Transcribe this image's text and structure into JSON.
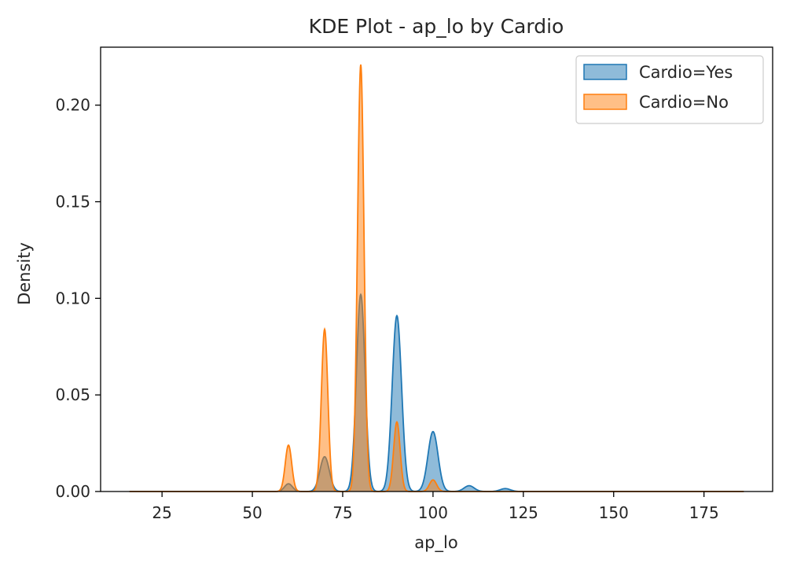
{
  "chart_data": {
    "type": "area",
    "title": "KDE Plot - ap_lo by Cardio",
    "xlabel": "ap_lo",
    "ylabel": "Density",
    "xlim": [
      8,
      194
    ],
    "ylim": [
      0,
      0.23
    ],
    "xticks": [
      25,
      50,
      75,
      100,
      125,
      150,
      175
    ],
    "yticks": [
      0.0,
      0.05,
      0.1,
      0.15,
      0.2
    ],
    "ytick_labels": [
      "0.00",
      "0.05",
      "0.10",
      "0.15",
      "0.20"
    ],
    "grid": false,
    "legend": "top-right",
    "x_range": [
      16,
      186
    ],
    "series": [
      {
        "name": "Cardio=Yes",
        "color": "#1f77b4",
        "peaks": [
          {
            "x": 60,
            "y": 0.004,
            "width": 1.1
          },
          {
            "x": 70,
            "y": 0.018,
            "width": 1.3
          },
          {
            "x": 80,
            "y": 0.102,
            "width": 1.2
          },
          {
            "x": 90,
            "y": 0.091,
            "width": 1.3
          },
          {
            "x": 100,
            "y": 0.031,
            "width": 1.4
          },
          {
            "x": 110,
            "y": 0.003,
            "width": 1.4
          },
          {
            "x": 120,
            "y": 0.0015,
            "width": 1.4
          }
        ]
      },
      {
        "name": "Cardio=No",
        "color": "#ff7f0e",
        "peaks": [
          {
            "x": 60,
            "y": 0.024,
            "width": 0.9
          },
          {
            "x": 70,
            "y": 0.084,
            "width": 0.9
          },
          {
            "x": 80,
            "y": 0.221,
            "width": 0.9
          },
          {
            "x": 90,
            "y": 0.036,
            "width": 0.9
          },
          {
            "x": 100,
            "y": 0.006,
            "width": 1.0
          }
        ]
      }
    ]
  }
}
